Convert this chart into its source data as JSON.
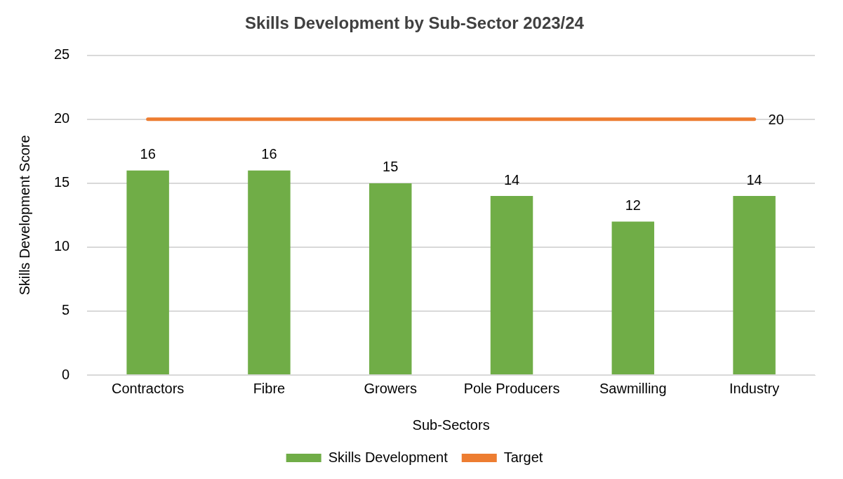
{
  "chart_data": {
    "type": "bar",
    "title": "Skills Development by Sub-Sector 2023/24",
    "xlabel": "Sub-Sectors",
    "ylabel": "Skills Development Score",
    "categories": [
      "Contractors",
      "Fibre",
      "Growers",
      "Pole Producers",
      "Sawmilling",
      "Industry"
    ],
    "series": [
      {
        "name": "Skills Development",
        "color": "#70ad47",
        "values": [
          16,
          16,
          15,
          14,
          12,
          14
        ],
        "value_labels": [
          "16",
          "16",
          "15",
          "14",
          "12",
          "14"
        ]
      },
      {
        "name": "Target",
        "type": "line",
        "color": "#ed7d31",
        "marker": "none",
        "values": [
          20,
          20,
          20,
          20,
          20,
          20
        ],
        "value_labels": [
          null,
          null,
          null,
          null,
          null,
          "20"
        ]
      }
    ],
    "ylim": [
      0,
      25
    ],
    "yticks": [
      0,
      5,
      10,
      15,
      20,
      25
    ],
    "grid": "y",
    "legend": "bottom"
  }
}
